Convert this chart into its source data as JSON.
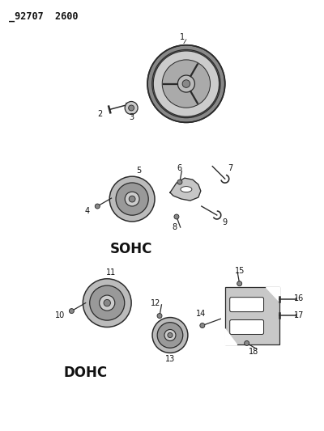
{
  "title": "92707 2600",
  "bg_color": "#ffffff",
  "line_color": "#2a2a2a",
  "text_color": "#111111",
  "figsize": [
    4.0,
    5.33
  ],
  "dpi": 100,
  "sohc_label": "SOHC",
  "dohc_label": "DOHC"
}
